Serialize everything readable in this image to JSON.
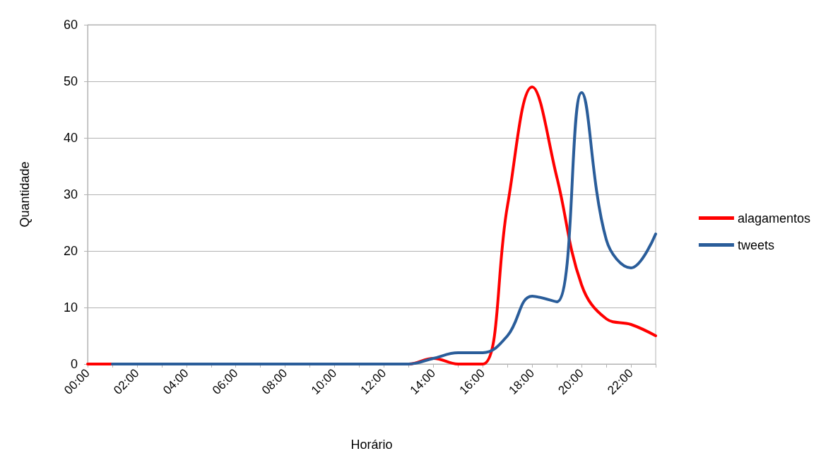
{
  "chart_data": {
    "type": "line",
    "xlabel": "Horário",
    "ylabel": "Quantidade",
    "categories": [
      "00:00",
      null,
      "02:00",
      null,
      "04:00",
      null,
      "06:00",
      null,
      "08:00",
      null,
      "10:00",
      null,
      "12:00",
      null,
      "14:00",
      null,
      "16:00",
      null,
      "18:00",
      null,
      "20:00",
      null,
      "22:00",
      null
    ],
    "series": [
      {
        "name": "alagamentos",
        "color": "#ff0000",
        "values": [
          0,
          0,
          0,
          0,
          0,
          0,
          0,
          0,
          0,
          0,
          0,
          0,
          0,
          0,
          1,
          0,
          0,
          28,
          49,
          33,
          14,
          8,
          7,
          5
        ]
      },
      {
        "name": "tweets",
        "color": "#2a5d9a",
        "values": [
          null,
          0,
          0,
          0,
          0,
          0,
          0,
          0,
          0,
          0,
          0,
          0,
          0,
          0,
          1,
          2,
          2,
          5,
          12,
          11,
          48,
          22,
          17,
          23
        ]
      }
    ],
    "ylim": [
      0,
      60
    ],
    "yticks": [
      0,
      10,
      20,
      30,
      40,
      50,
      60
    ],
    "grid": "y",
    "legend": "right",
    "marker": "none",
    "line_style": "solid"
  }
}
